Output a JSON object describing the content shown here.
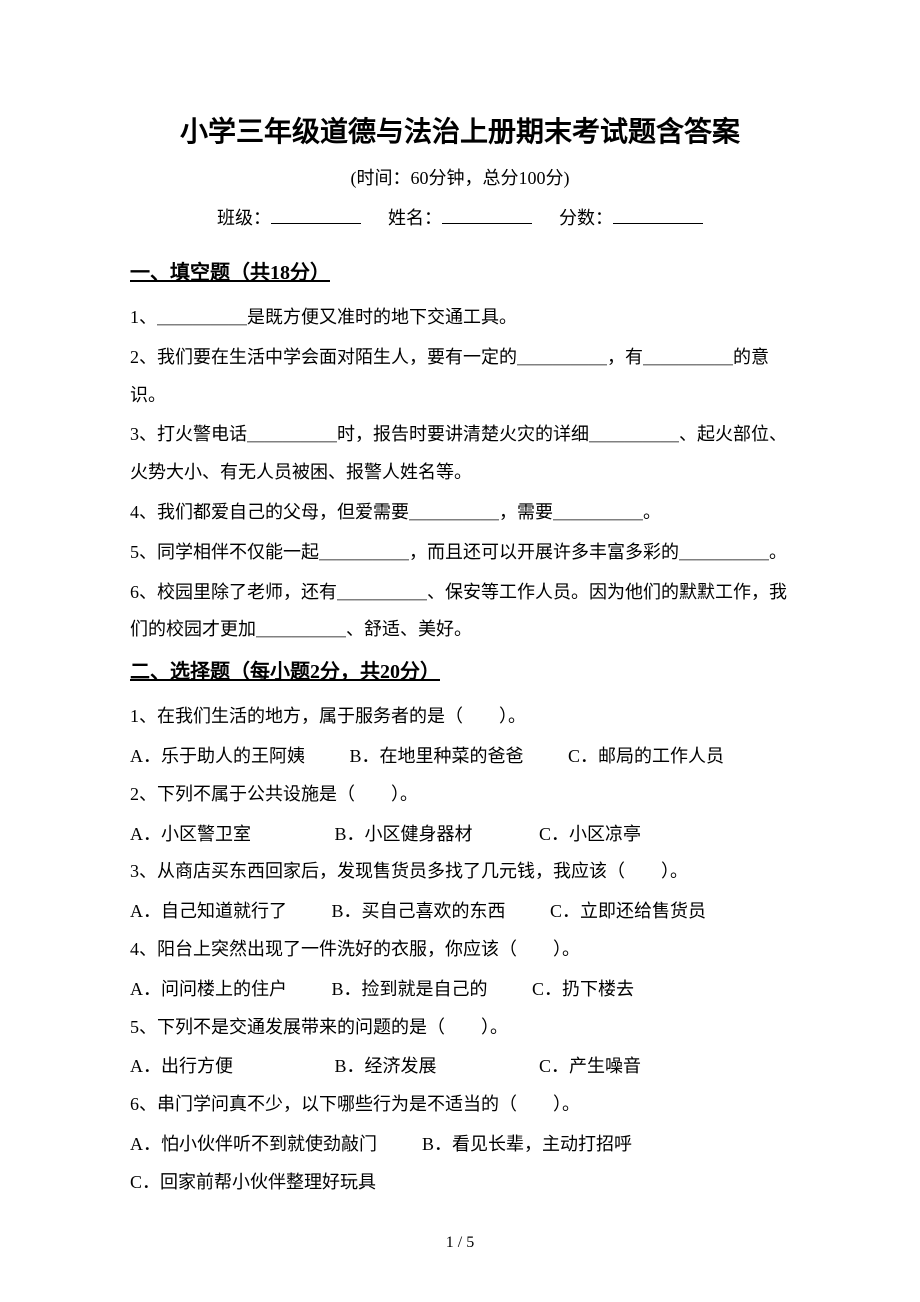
{
  "header": {
    "title": "小学三年级道德与法治上册期末考试题含答案",
    "subtitle": "(时间：60分钟，总分100分)",
    "class_label": "班级：",
    "name_label": "姓名：",
    "score_label": "分数："
  },
  "section1": {
    "heading": "一、填空题（共18分）",
    "q1": "1、＿＿＿＿＿是既方便又准时的地下交通工具。",
    "q2": "2、我们要在生活中学会面对陌生人，要有一定的＿＿＿＿＿，有＿＿＿＿＿的意识。",
    "q3": "3、打火警电话＿＿＿＿＿时，报告时要讲清楚火灾的详细＿＿＿＿＿、起火部位、火势大小、有无人员被困、报警人姓名等。",
    "q4": "4、我们都爱自己的父母，但爱需要＿＿＿＿＿，需要＿＿＿＿＿。",
    "q5": "5、同学相伴不仅能一起＿＿＿＿＿，而且还可以开展许多丰富多彩的＿＿＿＿＿。",
    "q6": "6、校园里除了老师，还有＿＿＿＿＿、保安等工作人员。因为他们的默默工作，我们的校园才更加＿＿＿＿＿、舒适、美好。"
  },
  "section2": {
    "heading": "二、选择题（每小题2分，共20分）",
    "q1": {
      "text": "1、在我们生活的地方，属于服务者的是（　　）。",
      "a": "A．乐于助人的王阿姨",
      "b": "B．在地里种菜的爸爸",
      "c": "C．邮局的工作人员"
    },
    "q2": {
      "text": "2、下列不属于公共设施是（　　）。",
      "a": "A．小区警卫室",
      "b": "B．小区健身器材",
      "c": "C．小区凉亭"
    },
    "q3": {
      "text": "3、从商店买东西回家后，发现售货员多找了几元钱，我应该（　　）。",
      "a": "A．自己知道就行了",
      "b": "B．买自己喜欢的东西",
      "c": "C．立即还给售货员"
    },
    "q4": {
      "text": "4、阳台上突然出现了一件洗好的衣服，你应该（　　）。",
      "a": "A．问问楼上的住户",
      "b": "B．捡到就是自己的",
      "c": "C．扔下楼去"
    },
    "q5": {
      "text": "5、下列不是交通发展带来的问题的是（　　）。",
      "a": "A．出行方便",
      "b": "B．经济发展",
      "c": "C．产生噪音"
    },
    "q6": {
      "text": "6、串门学问真不少，以下哪些行为是不适当的（　　）。",
      "a": "A．怕小伙伴听不到就使劲敲门",
      "b": "B．看见长辈，主动打招呼",
      "c": "C．回家前帮小伙伴整理好玩具"
    }
  },
  "footer": {
    "page": "1 / 5"
  }
}
